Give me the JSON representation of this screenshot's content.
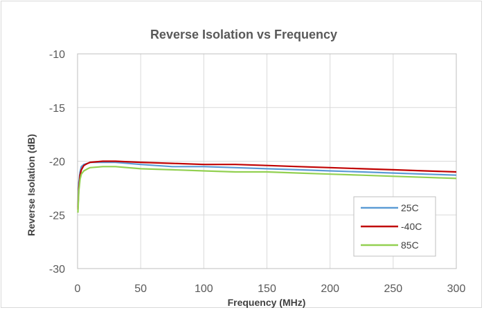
{
  "chart_data": {
    "type": "line",
    "title": "Reverse Isolation vs Frequency",
    "xlabel": "Frequency (MHz)",
    "ylabel": "Reverse Isolation (dB)",
    "xlim": [
      0,
      300
    ],
    "ylim": [
      -30,
      -10
    ],
    "x_ticks": [
      0,
      50,
      100,
      150,
      200,
      250,
      300
    ],
    "y_ticks": [
      -10,
      -15,
      -20,
      -25,
      -30
    ],
    "grid": true,
    "legend_position": "bottom-right",
    "series": [
      {
        "name": "25C",
        "color": "#5b9bd5",
        "x": [
          0.3,
          1,
          2,
          3,
          5,
          8,
          10,
          20,
          30,
          50,
          75,
          100,
          125,
          150,
          175,
          200,
          225,
          250,
          275,
          300
        ],
        "values": [
          -24.3,
          -22.0,
          -21.0,
          -20.5,
          -20.3,
          -20.2,
          -20.1,
          -20.1,
          -20.1,
          -20.3,
          -20.5,
          -20.5,
          -20.6,
          -20.7,
          -20.8,
          -20.9,
          -21.0,
          -21.1,
          -21.2,
          -21.3
        ]
      },
      {
        "name": "-40C",
        "color": "#c00000",
        "x": [
          0.3,
          1,
          2,
          3,
          5,
          8,
          10,
          20,
          30,
          50,
          75,
          100,
          125,
          150,
          175,
          200,
          225,
          250,
          275,
          300
        ],
        "values": [
          -24.5,
          -22.5,
          -21.3,
          -20.8,
          -20.4,
          -20.2,
          -20.1,
          -20.0,
          -20.0,
          -20.1,
          -20.2,
          -20.3,
          -20.3,
          -20.4,
          -20.5,
          -20.6,
          -20.7,
          -20.8,
          -20.9,
          -21.0
        ]
      },
      {
        "name": "85C",
        "color": "#92d050",
        "x": [
          0.3,
          1,
          2,
          3,
          5,
          8,
          10,
          20,
          30,
          50,
          75,
          100,
          125,
          150,
          175,
          200,
          225,
          250,
          275,
          300
        ],
        "values": [
          -24.8,
          -22.8,
          -21.7,
          -21.2,
          -20.9,
          -20.7,
          -20.6,
          -20.5,
          -20.5,
          -20.7,
          -20.8,
          -20.9,
          -21.0,
          -21.0,
          -21.1,
          -21.2,
          -21.3,
          -21.4,
          -21.5,
          -21.6
        ]
      }
    ]
  }
}
